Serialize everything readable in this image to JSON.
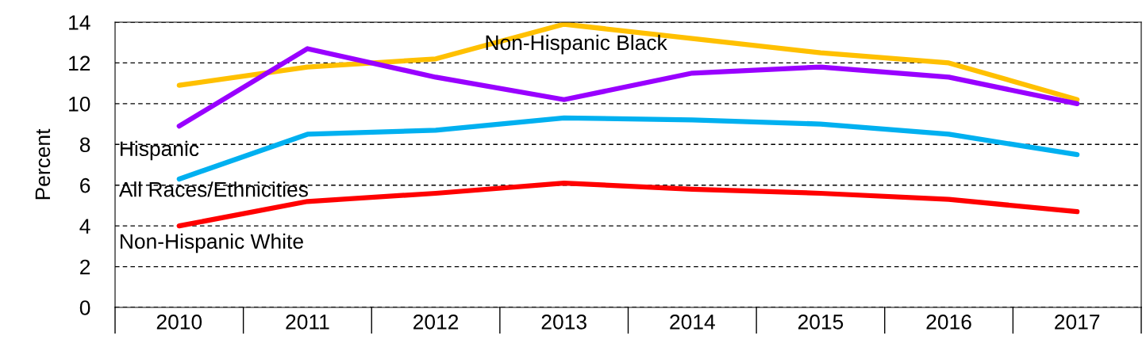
{
  "chart_data": {
    "type": "line",
    "ylabel": "Percent",
    "categories": [
      "2010",
      "2011",
      "2012",
      "2013",
      "2014",
      "2015",
      "2016",
      "2017"
    ],
    "ylim": [
      0,
      14
    ],
    "yticks": [
      0,
      2,
      4,
      6,
      8,
      10,
      12,
      14
    ],
    "grid": "y",
    "legend": false,
    "marker": "none",
    "line_style": "solid",
    "series": [
      {
        "name": "Non-Hispanic Black",
        "color": "#ffc000",
        "values": [
          10.9,
          11.8,
          12.2,
          13.9,
          13.2,
          12.5,
          12.0,
          10.2
        ]
      },
      {
        "name": "Hispanic",
        "color": "#9900ff",
        "values": [
          8.9,
          12.7,
          11.3,
          10.2,
          11.5,
          11.8,
          11.3,
          10.0
        ]
      },
      {
        "name": "All Races/Ethnicities",
        "color": "#00b0f0",
        "values": [
          6.3,
          8.5,
          8.7,
          9.3,
          9.2,
          9.0,
          8.5,
          7.5
        ]
      },
      {
        "name": "Non-Hispanic White",
        "color": "#ff0000",
        "values": [
          4.0,
          5.2,
          5.6,
          6.1,
          5.8,
          5.6,
          5.3,
          4.7
        ]
      }
    ]
  }
}
